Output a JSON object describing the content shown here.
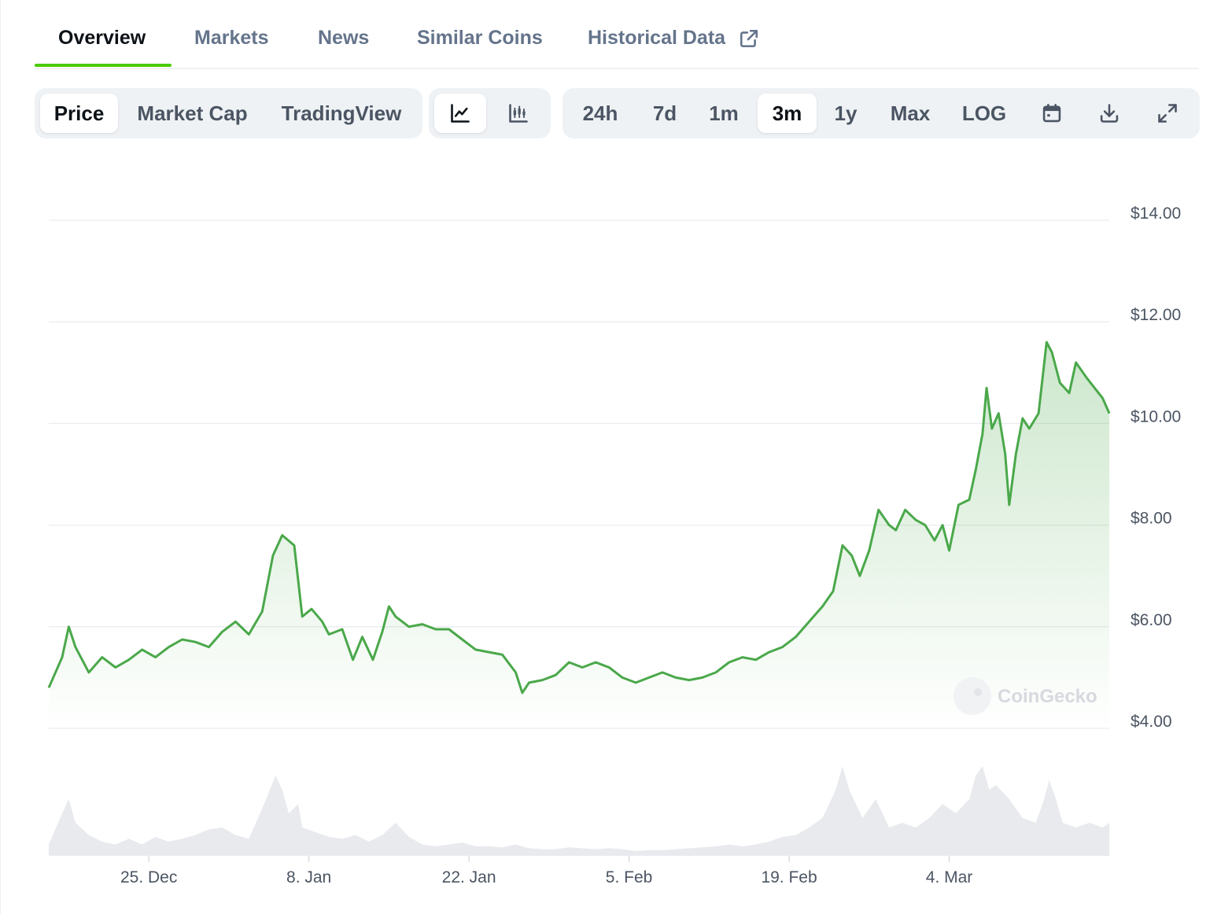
{
  "tabs": [
    {
      "label": "Overview",
      "active": true
    },
    {
      "label": "Markets",
      "active": false
    },
    {
      "label": "News",
      "active": false
    },
    {
      "label": "Similar Coins",
      "active": false
    },
    {
      "label": "Historical Data",
      "active": false
    }
  ],
  "view_toggle": [
    {
      "label": "Price",
      "active": true
    },
    {
      "label": "Market Cap",
      "active": false
    },
    {
      "label": "TradingView",
      "active": false
    }
  ],
  "chart_style_toggle": [
    {
      "icon": "line-chart-icon",
      "active": true
    },
    {
      "icon": "candlestick-chart-icon",
      "active": false
    }
  ],
  "range_toggle": [
    {
      "label": "24h",
      "active": false
    },
    {
      "label": "7d",
      "active": false
    },
    {
      "label": "1m",
      "active": false
    },
    {
      "label": "3m",
      "active": true
    },
    {
      "label": "1y",
      "active": false
    },
    {
      "label": "Max",
      "active": false
    },
    {
      "label": "LOG",
      "active": false
    }
  ],
  "toolbar_icons": [
    "calendar-icon",
    "download-icon",
    "fullscreen-icon"
  ],
  "watermark": "CoinGecko",
  "colors": {
    "accent": "#4bcc00",
    "line": "#4aa84a",
    "fill": "#4aa84a",
    "volume": "#e8eaee",
    "grid": "#eaecef",
    "toggle_bg": "#eff2f5"
  },
  "chart_data": {
    "type": "area",
    "series": [
      {
        "values": [
          [
            0,
            4.8
          ],
          [
            1,
            5.4
          ],
          [
            1.5,
            6.0
          ],
          [
            2,
            5.6
          ],
          [
            3,
            5.1
          ],
          [
            4,
            5.4
          ],
          [
            5,
            5.2
          ],
          [
            6,
            5.35
          ],
          [
            7,
            5.55
          ],
          [
            8,
            5.4
          ],
          [
            9,
            5.6
          ],
          [
            10,
            5.75
          ],
          [
            11,
            5.7
          ],
          [
            12,
            5.6
          ],
          [
            13,
            5.9
          ],
          [
            14,
            6.1
          ],
          [
            15,
            5.85
          ],
          [
            16,
            6.3
          ],
          [
            16.8,
            7.4
          ],
          [
            17.5,
            7.8
          ],
          [
            18.4,
            7.6
          ],
          [
            19,
            6.2
          ],
          [
            19.7,
            6.35
          ],
          [
            20.5,
            6.1
          ],
          [
            21,
            5.85
          ],
          [
            22,
            5.95
          ],
          [
            22.8,
            5.35
          ],
          [
            23.5,
            5.8
          ],
          [
            24.3,
            5.35
          ],
          [
            25,
            5.9
          ],
          [
            25.5,
            6.4
          ],
          [
            26,
            6.2
          ],
          [
            27,
            6.0
          ],
          [
            28,
            6.05
          ],
          [
            29,
            5.95
          ],
          [
            30,
            5.95
          ],
          [
            31,
            5.75
          ],
          [
            32,
            5.55
          ],
          [
            33,
            5.5
          ],
          [
            34,
            5.45
          ],
          [
            35,
            5.1
          ],
          [
            35.5,
            4.7
          ],
          [
            36,
            4.9
          ],
          [
            37,
            4.95
          ],
          [
            38,
            5.05
          ],
          [
            39,
            5.3
          ],
          [
            40,
            5.2
          ],
          [
            41,
            5.3
          ],
          [
            42,
            5.2
          ],
          [
            43,
            5.0
          ],
          [
            44,
            4.9
          ],
          [
            45,
            5.0
          ],
          [
            46,
            5.1
          ],
          [
            47,
            5.0
          ],
          [
            48,
            4.95
          ],
          [
            49,
            5.0
          ],
          [
            50,
            5.1
          ],
          [
            51,
            5.3
          ],
          [
            52,
            5.4
          ],
          [
            53,
            5.35
          ],
          [
            54,
            5.5
          ],
          [
            55,
            5.6
          ],
          [
            56,
            5.8
          ],
          [
            57,
            6.1
          ],
          [
            58,
            6.4
          ],
          [
            58.8,
            6.7
          ],
          [
            59.5,
            7.6
          ],
          [
            60.2,
            7.4
          ],
          [
            60.8,
            7.0
          ],
          [
            61.5,
            7.5
          ],
          [
            62.2,
            8.3
          ],
          [
            63,
            8.0
          ],
          [
            63.5,
            7.9
          ],
          [
            64.2,
            8.3
          ],
          [
            65,
            8.1
          ],
          [
            65.7,
            8.0
          ],
          [
            66.4,
            7.7
          ],
          [
            67,
            8.0
          ],
          [
            67.5,
            7.5
          ],
          [
            68.2,
            8.4
          ],
          [
            69,
            8.5
          ],
          [
            69.5,
            9.1
          ],
          [
            70,
            9.8
          ],
          [
            70.3,
            10.7
          ],
          [
            70.7,
            9.9
          ],
          [
            71.2,
            10.2
          ],
          [
            71.7,
            9.4
          ],
          [
            72,
            8.4
          ],
          [
            72.5,
            9.4
          ],
          [
            73,
            10.1
          ],
          [
            73.5,
            9.9
          ],
          [
            74.2,
            10.2
          ],
          [
            74.8,
            11.6
          ],
          [
            75.2,
            11.4
          ],
          [
            75.8,
            10.8
          ],
          [
            76.5,
            10.6
          ],
          [
            77,
            11.2
          ],
          [
            77.8,
            10.9
          ],
          [
            78.4,
            10.7
          ],
          [
            79,
            10.5
          ],
          [
            79.5,
            10.2
          ]
        ]
      }
    ],
    "x_tick_labels": [
      "25. Dec",
      "8. Jan",
      "22. Jan",
      "5. Feb",
      "19. Feb",
      "4. Mar"
    ],
    "x_tick_positions": [
      7.5,
      19.5,
      31.5,
      43.5,
      55.5,
      67.5
    ],
    "xlim": [
      0,
      79.5
    ],
    "y_tick_labels": [
      "$14.00",
      "$12.00",
      "$10.00",
      "$8.00",
      "$6.00",
      "$4.00"
    ],
    "y_tick_values": [
      14,
      12,
      10,
      8,
      6,
      4
    ],
    "ylim": [
      4,
      14
    ],
    "grid": true,
    "volume": [
      [
        0,
        0.12
      ],
      [
        1,
        0.45
      ],
      [
        1.5,
        0.6
      ],
      [
        2,
        0.35
      ],
      [
        3,
        0.22
      ],
      [
        4,
        0.15
      ],
      [
        5,
        0.12
      ],
      [
        6,
        0.18
      ],
      [
        7,
        0.12
      ],
      [
        8,
        0.2
      ],
      [
        9,
        0.15
      ],
      [
        10,
        0.18
      ],
      [
        11,
        0.22
      ],
      [
        12,
        0.28
      ],
      [
        13,
        0.3
      ],
      [
        14,
        0.22
      ],
      [
        15,
        0.18
      ],
      [
        16,
        0.5
      ],
      [
        17,
        0.85
      ],
      [
        17.5,
        0.7
      ],
      [
        18,
        0.45
      ],
      [
        18.7,
        0.55
      ],
      [
        19,
        0.3
      ],
      [
        20,
        0.25
      ],
      [
        21,
        0.2
      ],
      [
        22,
        0.18
      ],
      [
        23,
        0.22
      ],
      [
        24,
        0.15
      ],
      [
        25,
        0.22
      ],
      [
        26,
        0.35
      ],
      [
        27,
        0.2
      ],
      [
        28,
        0.12
      ],
      [
        29,
        0.1
      ],
      [
        30,
        0.12
      ],
      [
        31,
        0.14
      ],
      [
        32,
        0.1
      ],
      [
        33,
        0.1
      ],
      [
        34,
        0.09
      ],
      [
        35,
        0.12
      ],
      [
        36,
        0.08
      ],
      [
        37,
        0.07
      ],
      [
        38,
        0.07
      ],
      [
        39,
        0.09
      ],
      [
        40,
        0.08
      ],
      [
        41,
        0.07
      ],
      [
        42,
        0.08
      ],
      [
        43,
        0.07
      ],
      [
        44,
        0.05
      ],
      [
        45,
        0.06
      ],
      [
        46,
        0.06
      ],
      [
        47,
        0.07
      ],
      [
        48,
        0.08
      ],
      [
        49,
        0.09
      ],
      [
        50,
        0.1
      ],
      [
        51,
        0.12
      ],
      [
        52,
        0.1
      ],
      [
        53,
        0.12
      ],
      [
        54,
        0.15
      ],
      [
        55,
        0.2
      ],
      [
        56,
        0.22
      ],
      [
        57,
        0.3
      ],
      [
        58,
        0.4
      ],
      [
        59,
        0.7
      ],
      [
        59.5,
        0.95
      ],
      [
        60,
        0.7
      ],
      [
        61,
        0.4
      ],
      [
        62,
        0.6
      ],
      [
        62.5,
        0.45
      ],
      [
        63,
        0.3
      ],
      [
        64,
        0.35
      ],
      [
        65,
        0.3
      ],
      [
        66,
        0.4
      ],
      [
        67,
        0.55
      ],
      [
        68,
        0.45
      ],
      [
        69,
        0.6
      ],
      [
        69.5,
        0.85
      ],
      [
        70,
        0.95
      ],
      [
        70.5,
        0.7
      ],
      [
        71,
        0.75
      ],
      [
        72,
        0.6
      ],
      [
        72.5,
        0.5
      ],
      [
        73,
        0.4
      ],
      [
        74,
        0.35
      ],
      [
        74.5,
        0.55
      ],
      [
        75,
        0.8
      ],
      [
        75.5,
        0.6
      ],
      [
        76,
        0.35
      ],
      [
        77,
        0.3
      ],
      [
        78,
        0.35
      ],
      [
        79,
        0.3
      ],
      [
        79.5,
        0.35
      ]
    ]
  }
}
